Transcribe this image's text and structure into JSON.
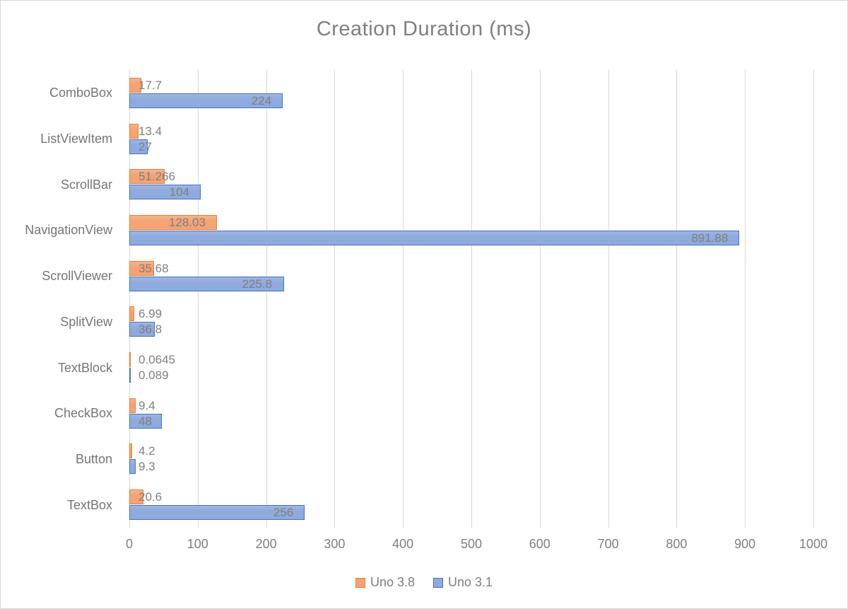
{
  "chart_data": {
    "type": "bar",
    "orientation": "horizontal",
    "title": "Creation Duration (ms)",
    "categories": [
      "ComboBox",
      "ListViewItem",
      "ScrollBar",
      "NavigationView",
      "ScrollViewer",
      "SplitView",
      "TextBlock",
      "CheckBox",
      "Button",
      "TextBox"
    ],
    "series": [
      {
        "name": "Uno 3.8",
        "fill_color": "#F3A376",
        "border_color": "#ED7D31",
        "values": [
          17.7,
          13.4,
          51.266,
          128.03,
          35.68,
          6.99,
          0.0645,
          9.4,
          4.2,
          20.6
        ],
        "labels": [
          "17.7",
          "13.4",
          "51.266",
          "128.03",
          "35.68",
          "6.99",
          "0.0645",
          "9.4",
          "4.2",
          "20.6"
        ]
      },
      {
        "name": "Uno 3.1",
        "fill_color": "#8FAADC",
        "border_color": "#4472C4",
        "values": [
          224,
          27,
          104,
          891.88,
          225.8,
          36.8,
          0.089,
          48,
          9.3,
          256
        ],
        "labels": [
          "224",
          "27",
          "104",
          "891.88",
          "225.8",
          "36.8",
          "0.089",
          "48",
          "9.3",
          "256"
        ]
      }
    ],
    "x_axis": {
      "min": 0,
      "max": 1000,
      "step": 100,
      "tick_labels": [
        "0",
        "100",
        "200",
        "300",
        "400",
        "500",
        "600",
        "700",
        "800",
        "900",
        "1000"
      ]
    },
    "grid": true,
    "gridline_color": "#D9D9D9",
    "text_color": "#7F7F7F",
    "legend_position": "bottom"
  }
}
